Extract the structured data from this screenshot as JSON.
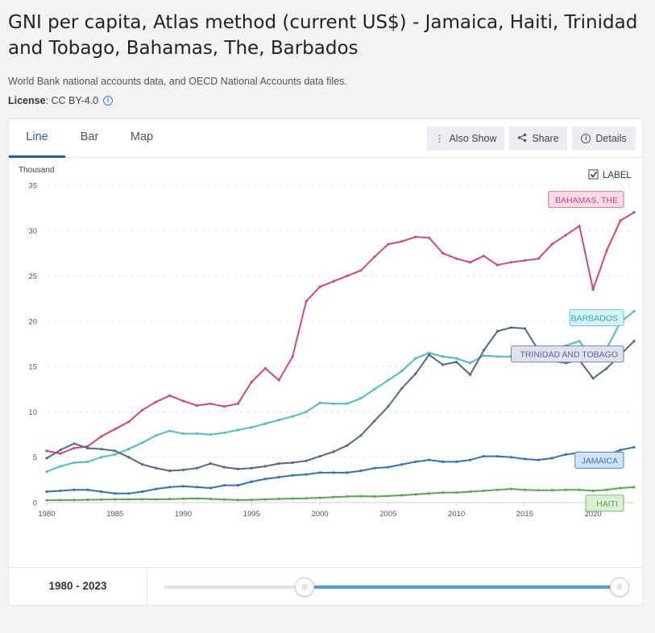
{
  "header": {
    "title": "GNI per capita, Atlas method (current US$) - Jamaica, Haiti, Trinidad and Tobago, Bahamas, The, Barbados",
    "source": "World Bank national accounts data, and OECD National Accounts data files.",
    "license_label": "License",
    "license_value": " : CC BY-4.0"
  },
  "tabs": [
    {
      "label": "Line",
      "active": true
    },
    {
      "label": "Bar",
      "active": false
    },
    {
      "label": "Map",
      "active": false
    }
  ],
  "toolbar": {
    "also_show": "Also Show",
    "share": "Share",
    "details": "Details"
  },
  "label_toggle": {
    "label": "LABEL",
    "checked": true
  },
  "range": {
    "start": "1980",
    "separator": " - ",
    "end": "2023"
  },
  "chart_data": {
    "type": "line",
    "yunit": "Thousand",
    "ylim": [
      0,
      35
    ],
    "yticks": [
      0,
      5,
      10,
      15,
      20,
      25,
      30,
      35
    ],
    "xlim": [
      1980,
      2023
    ],
    "xticks": [
      1980,
      1985,
      1990,
      1995,
      2000,
      2005,
      2010,
      2015,
      2020
    ],
    "grid": true,
    "x": [
      1980,
      1981,
      1982,
      1983,
      1984,
      1985,
      1986,
      1987,
      1988,
      1989,
      1990,
      1991,
      1992,
      1993,
      1994,
      1995,
      1996,
      1997,
      1998,
      1999,
      2000,
      2001,
      2002,
      2003,
      2004,
      2005,
      2006,
      2007,
      2008,
      2009,
      2010,
      2011,
      2012,
      2013,
      2014,
      2015,
      2016,
      2017,
      2018,
      2019,
      2020,
      2021,
      2022,
      2023
    ],
    "series": [
      {
        "name": "BAHAMAS, THE",
        "color": "#d2457e",
        "label_fill": "#fbdbe6",
        "values": [
          5.7,
          5.4,
          6.0,
          6.2,
          7.3,
          8.1,
          8.9,
          10.2,
          11.1,
          11.8,
          11.2,
          10.7,
          10.9,
          10.6,
          10.9,
          13.3,
          14.8,
          13.5,
          16.1,
          22.2,
          23.8,
          24.4,
          25.0,
          25.6,
          27.1,
          28.5,
          28.8,
          29.3,
          29.2,
          27.5,
          26.9,
          26.5,
          27.2,
          26.2,
          26.5,
          26.7,
          26.9,
          28.5,
          29.5,
          30.5,
          23.5,
          27.8,
          31.1,
          32.0
        ]
      },
      {
        "name": "BARBADOS",
        "color": "#47bfc9",
        "label_fill": "#d4f1f3",
        "values": [
          3.4,
          4.0,
          4.4,
          4.5,
          5.0,
          5.3,
          5.9,
          6.6,
          7.4,
          7.9,
          7.6,
          7.6,
          7.5,
          7.7,
          8.0,
          8.3,
          8.7,
          9.1,
          9.5,
          10.0,
          11.0,
          10.9,
          10.9,
          11.5,
          12.5,
          13.5,
          14.5,
          15.9,
          16.5,
          16.1,
          15.9,
          15.4,
          16.2,
          16.1,
          16.1,
          16.1,
          16.0,
          16.8,
          17.3,
          17.8,
          15.7,
          17.0,
          19.9,
          21.1
        ]
      },
      {
        "name": "TRINIDAD AND TOBAGO",
        "color": "#55678c",
        "label_fill": "#dfe2ee",
        "values": [
          4.9,
          5.8,
          6.5,
          6.0,
          5.9,
          5.7,
          5.0,
          4.2,
          3.8,
          3.5,
          3.6,
          3.8,
          4.3,
          3.9,
          3.7,
          3.8,
          4.0,
          4.3,
          4.4,
          4.6,
          5.1,
          5.6,
          6.3,
          7.4,
          9.0,
          10.6,
          12.6,
          14.2,
          16.3,
          15.2,
          15.5,
          14.1,
          16.8,
          18.9,
          19.3,
          19.2,
          16.8,
          15.6,
          15.4,
          15.7,
          13.7,
          14.8,
          16.3,
          17.8
        ]
      },
      {
        "name": "JAMAICA",
        "color": "#2f74b5",
        "label_fill": "#d2e4f4",
        "values": [
          1.2,
          1.3,
          1.4,
          1.4,
          1.2,
          1.0,
          1.0,
          1.2,
          1.5,
          1.7,
          1.8,
          1.7,
          1.6,
          1.9,
          1.9,
          2.3,
          2.6,
          2.8,
          3.0,
          3.1,
          3.3,
          3.3,
          3.3,
          3.5,
          3.8,
          3.9,
          4.2,
          4.5,
          4.7,
          4.5,
          4.5,
          4.7,
          5.1,
          5.1,
          5.0,
          4.8,
          4.7,
          4.9,
          5.3,
          5.5,
          4.8,
          5.2,
          5.8,
          6.1
        ]
      },
      {
        "name": "HAITI",
        "color": "#5aa84e",
        "label_fill": "#dbefd7",
        "values": [
          0.25,
          0.27,
          0.28,
          0.3,
          0.32,
          0.34,
          0.36,
          0.37,
          0.36,
          0.38,
          0.42,
          0.45,
          0.4,
          0.33,
          0.28,
          0.3,
          0.35,
          0.4,
          0.43,
          0.47,
          0.52,
          0.6,
          0.67,
          0.7,
          0.67,
          0.72,
          0.8,
          0.9,
          1.0,
          1.1,
          1.1,
          1.2,
          1.3,
          1.4,
          1.5,
          1.4,
          1.35,
          1.35,
          1.4,
          1.4,
          1.3,
          1.4,
          1.6,
          1.7
        ]
      }
    ]
  }
}
